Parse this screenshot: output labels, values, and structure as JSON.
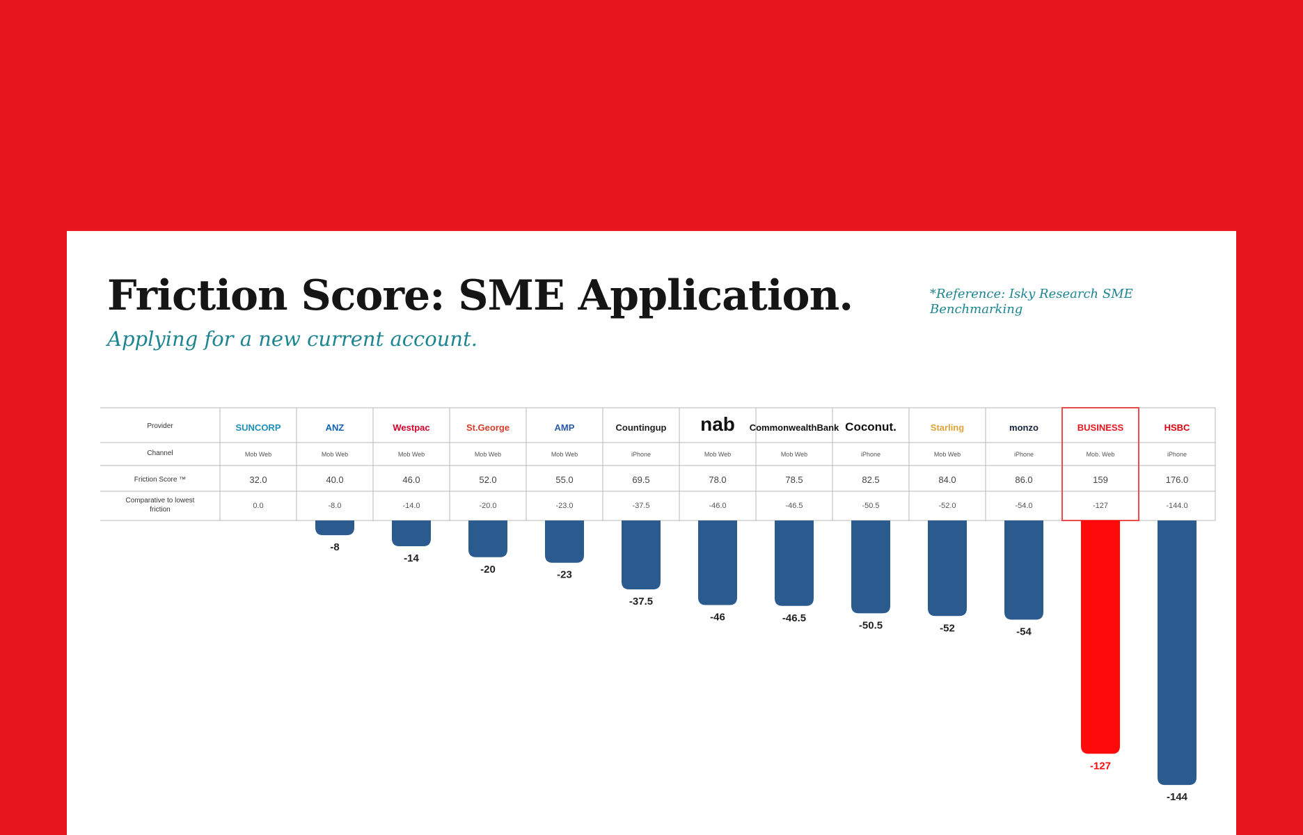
{
  "header": {
    "title": "Friction Score: SME Application.",
    "subtitle": "Applying for a new current account.",
    "reference": "*Reference: Isky Research SME Benchmarking"
  },
  "table": {
    "row_labels": [
      "Provider",
      "Channel",
      "Friction Score ™",
      "Comparative to lowest friction"
    ],
    "providers": [
      {
        "name": "SUNCORP",
        "logo_color": "#1d8fb8",
        "channel": "Mob Web",
        "friction_score": "32.0",
        "comparative": "0.0"
      },
      {
        "name": "ANZ",
        "logo_color": "#0d63b2",
        "channel": "Mob Web",
        "friction_score": "40.0",
        "comparative": "-8.0"
      },
      {
        "name": "Westpac",
        "logo_color": "#d5002b",
        "channel": "Mob Web",
        "friction_score": "46.0",
        "comparative": "-14.0"
      },
      {
        "name": "St.George",
        "logo_color": "#d53c2a",
        "channel": "Mob Web",
        "friction_score": "52.0",
        "comparative": "-20.0"
      },
      {
        "name": "AMP",
        "logo_color": "#2b5aa8",
        "channel": "Mob Web",
        "friction_score": "55.0",
        "comparative": "-23.0"
      },
      {
        "name": "Countingup",
        "logo_color": "#222222",
        "channel": "iPhone",
        "friction_score": "69.5",
        "comparative": "-37.5"
      },
      {
        "name": "nab",
        "logo_color": "#111111",
        "channel": "Mob Web",
        "friction_score": "78.0",
        "comparative": "-46.0"
      },
      {
        "name": "CommonwealthBank",
        "logo_color": "#111111",
        "channel": "Mob Web",
        "friction_score": "78.5",
        "comparative": "-46.5"
      },
      {
        "name": "Coconut.",
        "logo_color": "#111111",
        "channel": "iPhone",
        "friction_score": "82.5",
        "comparative": "-50.5"
      },
      {
        "name": "Starling",
        "logo_color": "#e0a23a",
        "channel": "Mob Web",
        "friction_score": "84.0",
        "comparative": "-52.0"
      },
      {
        "name": "monzo",
        "logo_color": "#14233c",
        "channel": "iPhone",
        "friction_score": "86.0",
        "comparative": "-54.0"
      },
      {
        "name": "BUSINESS",
        "logo_color": "#e8161f",
        "channel": "Mob. Web",
        "friction_score": "159",
        "comparative": "-127"
      },
      {
        "name": "HSBC",
        "logo_color": "#db0011",
        "channel": "iPhone",
        "friction_score": "176.0",
        "comparative": "-144.0"
      }
    ]
  },
  "chart_data": {
    "type": "bar",
    "categories": [
      "SUNCORP",
      "ANZ",
      "Westpac",
      "St.George",
      "AMP",
      "Countingup",
      "nab",
      "CommonwealthBank",
      "Coconut.",
      "Starling",
      "monzo",
      "BUSINESS",
      "HSBC"
    ],
    "values": [
      0,
      -8,
      -14,
      -20,
      -23,
      -37.5,
      -46,
      -46.5,
      -50.5,
      -52,
      -54,
      -127,
      -144
    ],
    "data_labels": [
      "",
      "-8",
      "-14",
      "-20",
      "-23",
      "-37.5",
      "-46",
      "-46.5",
      "-50.5",
      "-52",
      "-54",
      "-127",
      "-144"
    ],
    "colors": {
      "default": "#2b5b8e",
      "highlight": "#ff0a0a"
    },
    "highlight_index": 11,
    "title": "",
    "xlabel": "",
    "ylabel": "",
    "ylim": [
      -150,
      0
    ],
    "grid": false
  },
  "colors": {
    "background": "#e8161f",
    "card": "#ffffff",
    "title": "#151515",
    "accent_teal": "#1c8591",
    "bar_blue": "#2b5b8e",
    "bar_red": "#ff0a0a"
  }
}
